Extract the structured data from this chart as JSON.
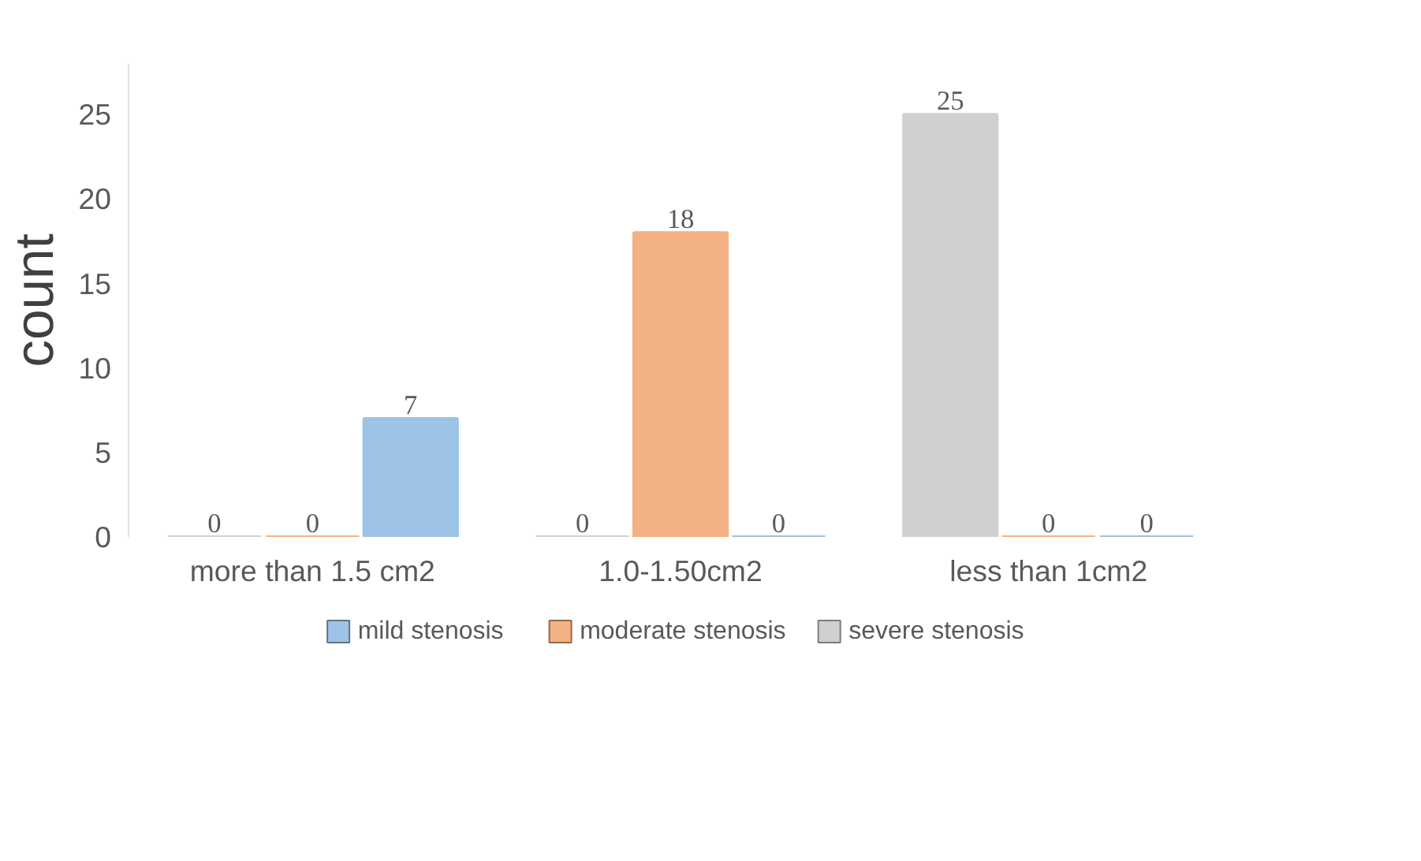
{
  "chart_data": {
    "type": "bar",
    "ylabel": "count",
    "categories": [
      "more than 1.5 cm2",
      "1.0-1.50cm2",
      "less than 1cm2"
    ],
    "series": [
      {
        "name": "severe stenosis",
        "color": "#d0d0d0",
        "values": [
          0,
          0,
          25
        ]
      },
      {
        "name": "moderate stenosis",
        "color": "#f4b183",
        "values": [
          0,
          18,
          0
        ]
      },
      {
        "name": "mild stenosis",
        "color": "#9dc3e6",
        "values": [
          7,
          0,
          0
        ]
      }
    ],
    "ylim": [
      0,
      28
    ],
    "yticks": [
      0,
      5,
      10,
      15,
      20,
      25
    ],
    "grid": false,
    "legend": "bottom",
    "data_labels": true
  }
}
